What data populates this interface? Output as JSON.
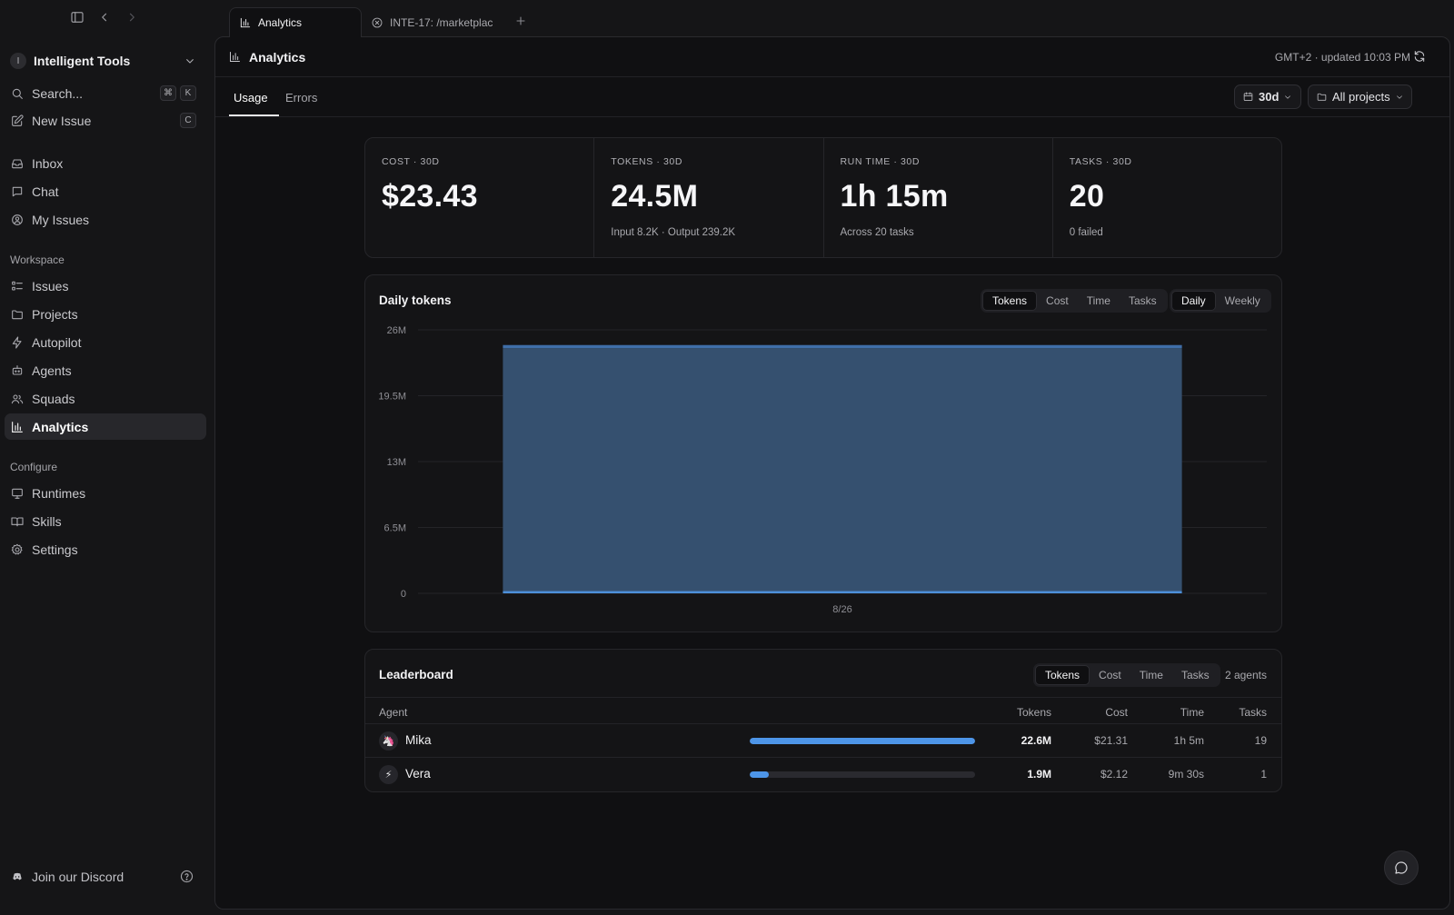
{
  "sidebar": {
    "workspace": {
      "initial": "I",
      "name": "Intelligent Tools"
    },
    "search": {
      "label": "Search...",
      "kbd1": "⌘",
      "kbd2": "K"
    },
    "new_issue": {
      "label": "New Issue",
      "kbd": "C"
    },
    "primary": [
      {
        "label": "Inbox",
        "icon": "inbox-icon"
      },
      {
        "label": "Chat",
        "icon": "chat-icon"
      },
      {
        "label": "My Issues",
        "icon": "user-circle-icon"
      }
    ],
    "workspace_label": "Workspace",
    "workspace_items": [
      {
        "label": "Issues",
        "icon": "list-icon"
      },
      {
        "label": "Projects",
        "icon": "folder-icon"
      },
      {
        "label": "Autopilot",
        "icon": "bolt-icon"
      },
      {
        "label": "Agents",
        "icon": "bot-icon"
      },
      {
        "label": "Squads",
        "icon": "users-icon"
      },
      {
        "label": "Analytics",
        "icon": "bar-chart-icon",
        "active": true
      }
    ],
    "configure_label": "Configure",
    "configure_items": [
      {
        "label": "Runtimes",
        "icon": "monitor-icon"
      },
      {
        "label": "Skills",
        "icon": "book-icon"
      },
      {
        "label": "Settings",
        "icon": "gear-icon"
      }
    ],
    "footer": {
      "discord": "Join our Discord"
    }
  },
  "tabs": [
    {
      "label": "Analytics",
      "icon": "bar-chart-icon",
      "active": true
    },
    {
      "label": "INTE-17: /marketplac",
      "icon": "close-circle-icon",
      "active": false
    }
  ],
  "header": {
    "title": "Analytics",
    "updated": "GMT+2 · updated 10:03 PM"
  },
  "subtabs": {
    "usage": "Usage",
    "errors": "Errors",
    "active": "Usage"
  },
  "filters": {
    "range": "30d",
    "projects": "All projects"
  },
  "stats": [
    {
      "label": "COST · 30D",
      "value": "$23.43",
      "sub": ""
    },
    {
      "label": "TOKENS · 30D",
      "value": "24.5M",
      "sub": "Input 8.2K · Output 239.2K"
    },
    {
      "label": "RUN TIME · 30D",
      "value": "1h 15m",
      "sub": "Across 20 tasks"
    },
    {
      "label": "TASKS · 30D",
      "value": "20",
      "sub": "0 failed"
    }
  ],
  "daily_chart": {
    "title": "Daily tokens",
    "metric_tabs": [
      "Tokens",
      "Cost",
      "Time",
      "Tasks"
    ],
    "metric_active": "Tokens",
    "period_tabs": [
      "Daily",
      "Weekly"
    ],
    "period_active": "Daily"
  },
  "chart_data": {
    "type": "bar",
    "title": "Daily tokens",
    "categories": [
      "8/26"
    ],
    "series": [
      {
        "color": "#4d8fd8",
        "values": [
          0.24
        ]
      },
      {
        "color": "#35506f",
        "values": [
          23.96
        ]
      },
      {
        "color": "#3f6ea8",
        "values": [
          0.3
        ]
      }
    ],
    "stacked": true,
    "ylim": [
      0,
      26
    ],
    "yticks": [
      0,
      6.5,
      13,
      19.5,
      26
    ],
    "ytick_labels": [
      "0",
      "6.5M",
      "13M",
      "19.5M",
      "26M"
    ],
    "unit": "M",
    "grid": true,
    "xlabel": "",
    "ylabel": ""
  },
  "leaderboard": {
    "title": "Leaderboard",
    "metric_tabs": [
      "Tokens",
      "Cost",
      "Time",
      "Tasks"
    ],
    "metric_active": "Tokens",
    "agents_count": "2 agents",
    "columns": {
      "agent": "Agent",
      "tokens": "Tokens",
      "cost": "Cost",
      "time": "Time",
      "tasks": "Tasks"
    },
    "rows": [
      {
        "avatar": "🦄",
        "name": "Mika",
        "share": 1.0,
        "tokens": "22.6M",
        "cost": "$21.31",
        "time": "1h 5m",
        "tasks": "19"
      },
      {
        "avatar": "⚡",
        "name": "Vera",
        "share": 0.084,
        "tokens": "1.9M",
        "cost": "$2.12",
        "time": "9m 30s",
        "tasks": "1"
      }
    ]
  },
  "colors": {
    "background": "#151517",
    "panel": "#101012",
    "card": "#141416",
    "accent_blue": "#4d95e8",
    "chart_bar": "#35506f"
  }
}
